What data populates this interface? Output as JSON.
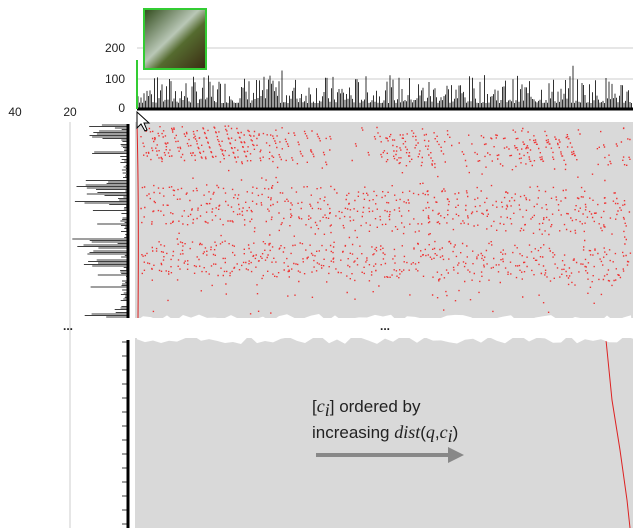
{
  "top_axis": {
    "ticks": [
      "200",
      "100",
      "0"
    ]
  },
  "left_axis": {
    "ticks": [
      "40",
      "20"
    ]
  },
  "ellipses": [
    "...",
    "..."
  ],
  "caption": {
    "line1": [
      "[",
      "c",
      "i",
      "] ordered by"
    ],
    "line2": [
      "increasing ",
      "dist",
      "(",
      "q",
      ",",
      "c",
      "i",
      ")"
    ]
  }
}
